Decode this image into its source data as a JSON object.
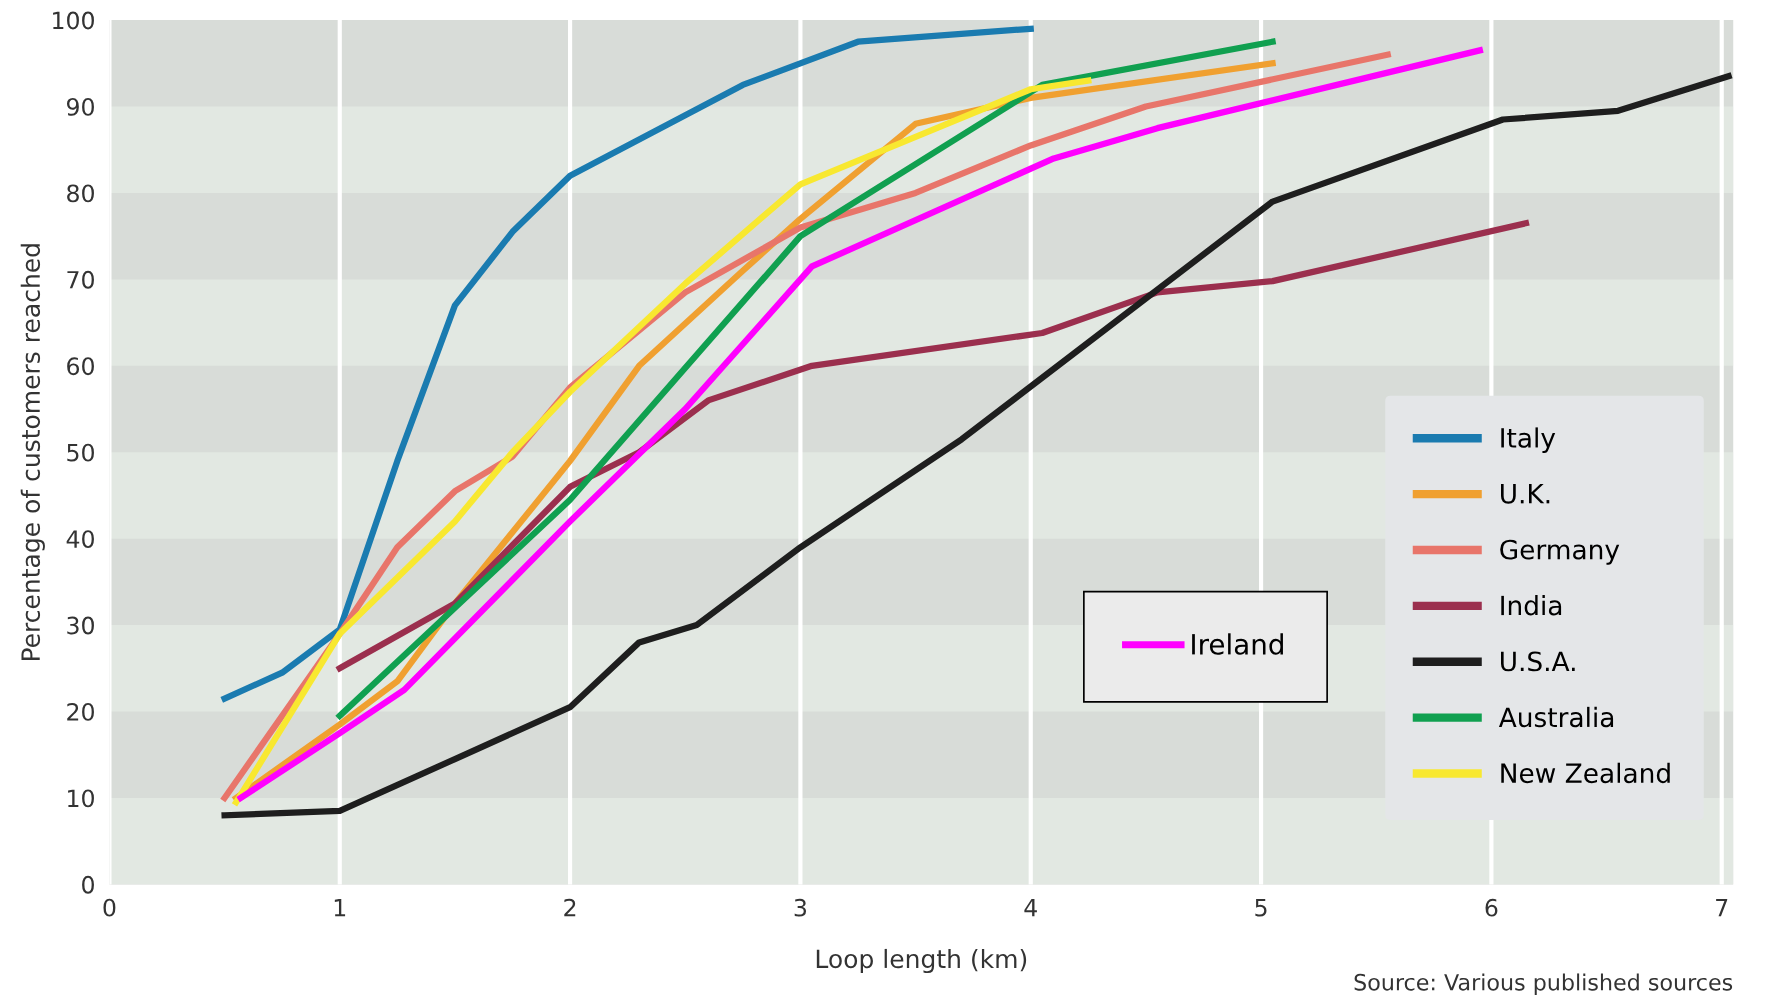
{
  "chart_data": {
    "type": "line",
    "xlabel": "Loop length (km)",
    "ylabel": "Percentage of customers reached",
    "annotations": [
      "Source: Various published sources"
    ],
    "xlim": [
      0,
      7.05
    ],
    "ylim": [
      0,
      100
    ],
    "xticks": [
      0,
      1,
      2,
      3,
      4,
      5,
      6,
      7
    ],
    "yticks": [
      0,
      10,
      20,
      30,
      40,
      50,
      60,
      70,
      80,
      90,
      100
    ],
    "grid": "x",
    "legend": "right",
    "line_style": "solid",
    "marker": "none",
    "series": [
      {
        "name": "Italy",
        "color": "#1a7bb0",
        "x": [
          0.5,
          0.75,
          1,
          1.25,
          1.5,
          1.75,
          2,
          2.5,
          2.75,
          3.25,
          4
        ],
        "values": [
          21.5,
          24.5,
          29.5,
          49,
          67,
          75.5,
          82,
          89,
          92.5,
          97.5,
          99
        ]
      },
      {
        "name": "U.K.",
        "color": "#f0a030",
        "x": [
          0.55,
          1,
          1.25,
          1.5,
          2,
          2.3,
          2.75,
          3,
          3.5,
          4,
          5.05
        ],
        "values": [
          10,
          18.5,
          23.5,
          32.5,
          49,
          60,
          71,
          77,
          88,
          91,
          95
        ]
      },
      {
        "name": "Germany",
        "color": "#e8756a",
        "x": [
          0.5,
          1,
          1.25,
          1.5,
          1.75,
          2,
          2.5,
          3,
          3.5,
          4,
          4.5,
          5.55
        ],
        "values": [
          10,
          29,
          39,
          45.5,
          49.5,
          57.5,
          68.5,
          76,
          80,
          85.5,
          90,
          96
        ]
      },
      {
        "name": "India",
        "color": "#9b2f4e",
        "x": [
          1,
          1.5,
          2,
          2.3,
          2.6,
          3.05,
          4.05,
          4.55,
          5.05,
          6.15
        ],
        "values": [
          25,
          32.5,
          46,
          50,
          56,
          60,
          63.8,
          68.5,
          69.8,
          76.5
        ]
      },
      {
        "name": "U.S.A.",
        "color": "#1e1e1e",
        "x": [
          0.5,
          1,
          1.5,
          2,
          2.3,
          2.55,
          3,
          3.7,
          5.05,
          6.05,
          6.55,
          7.03
        ],
        "values": [
          8,
          8.5,
          14.5,
          20.5,
          28,
          30,
          39,
          51.5,
          79,
          88.5,
          89.5,
          93.5
        ]
      },
      {
        "name": "Australia",
        "color": "#10a050",
        "x": [
          1,
          1.5,
          2,
          3,
          4.05,
          5.05
        ],
        "values": [
          19.5,
          32,
          44.5,
          75,
          92.5,
          97.5
        ]
      },
      {
        "name": "New Zealand",
        "color": "#f8e830",
        "x": [
          0.55,
          1,
          1.5,
          1.75,
          2,
          2.5,
          3,
          3.5,
          4,
          4.25
        ],
        "values": [
          9.5,
          29,
          42,
          50,
          57,
          69.5,
          81,
          86.5,
          92,
          93
        ]
      },
      {
        "name": "Ireland",
        "color": "#ff00ff",
        "x": [
          0.57,
          1,
          1.28,
          2,
          2.5,
          3.05,
          4.1,
          4.55,
          5.95
        ],
        "values": [
          10,
          17.5,
          22.5,
          42,
          55,
          71.5,
          84,
          87.5,
          96.5
        ]
      }
    ]
  }
}
